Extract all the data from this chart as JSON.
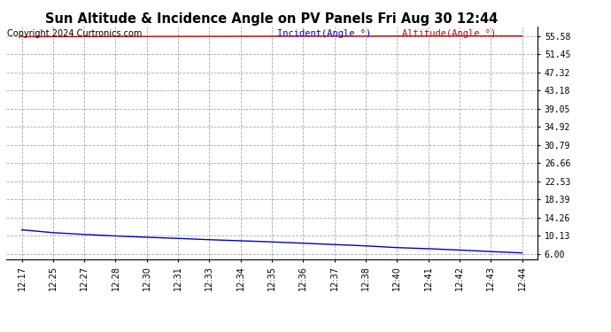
{
  "title": "Sun Altitude & Incidence Angle on PV Panels Fri Aug 30 12:44",
  "copyright": "Copyright 2024 Curtronics.com",
  "legend_incident": "Incident(Angle °)",
  "legend_altitude": "Altitude(Angle °)",
  "yticks": [
    6.0,
    10.13,
    14.26,
    18.39,
    22.53,
    26.66,
    30.79,
    34.92,
    39.05,
    43.18,
    47.32,
    51.45,
    55.58
  ],
  "ylim": [
    4.87,
    57.71
  ],
  "x_labels": [
    "12:17",
    "12:25",
    "12:27",
    "12:28",
    "12:30",
    "12:31",
    "12:33",
    "12:34",
    "12:35",
    "12:36",
    "12:37",
    "12:38",
    "12:40",
    "12:41",
    "12:42",
    "12:43",
    "12:44"
  ],
  "incident_color": "#cc0000",
  "altitude_color": "#0000cc",
  "background_color": "#ffffff",
  "grid_color": "#aaaaaa",
  "title_color": "#000000",
  "incident_values": [
    55.4,
    55.42,
    55.43,
    55.44,
    55.46,
    55.47,
    55.48,
    55.5,
    55.51,
    55.52,
    55.53,
    55.54,
    55.55,
    55.56,
    55.57,
    55.575,
    55.58
  ],
  "altitude_values": [
    11.5,
    10.85,
    10.45,
    10.1,
    9.8,
    9.55,
    9.25,
    9.0,
    8.75,
    8.45,
    8.15,
    7.85,
    7.45,
    7.2,
    6.9,
    6.55,
    6.25
  ],
  "title_fontsize": 10.5,
  "legend_fontsize": 7.5,
  "copyright_fontsize": 7,
  "tick_fontsize": 7
}
